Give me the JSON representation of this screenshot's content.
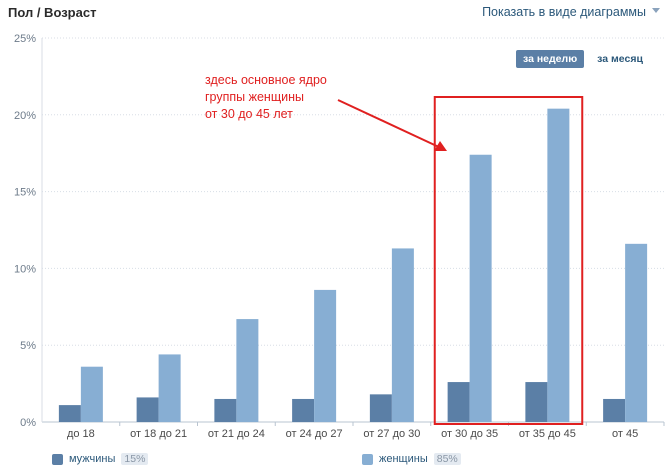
{
  "header": {
    "title": "Пол / Возраст",
    "view_link": "Показать в виде диаграммы"
  },
  "period": {
    "week_label": "за неделю",
    "month_label": "за месяц"
  },
  "annotation": {
    "lines": [
      "здесь основное ядро",
      "группы женщины",
      "от 30 до 45 лет"
    ]
  },
  "legend": {
    "men_label": "мужчины",
    "men_pct": "15%",
    "women_label": "женщины",
    "women_pct": "85%"
  },
  "colors": {
    "men": "#5b7fa6",
    "women": "#87aed3",
    "highlight": "#e02020",
    "grid": "#d8dee6"
  },
  "chart_data": {
    "type": "bar",
    "categories": [
      "до 18",
      "от 18 до 21",
      "от 21 до 24",
      "от 24 до 27",
      "от 27 до 30",
      "от 30 до 35",
      "от 35 до 45",
      "от 45"
    ],
    "series": [
      {
        "name": "мужчины",
        "values": [
          1.1,
          1.6,
          1.5,
          1.5,
          1.8,
          2.6,
          2.6,
          1.5
        ]
      },
      {
        "name": "женщины",
        "values": [
          3.6,
          4.4,
          6.7,
          8.6,
          11.3,
          17.4,
          20.4,
          11.6
        ]
      }
    ],
    "ylim": [
      0,
      25
    ],
    "yticks": [
      "0%",
      "5%",
      "10%",
      "15%",
      "20%",
      "25%"
    ],
    "ytick_values": [
      0,
      5,
      10,
      15,
      20,
      25
    ],
    "grid": true,
    "legend_position": "bottom",
    "highlight_categories": [
      "от 30 до 35",
      "от 35 до 45"
    ]
  }
}
